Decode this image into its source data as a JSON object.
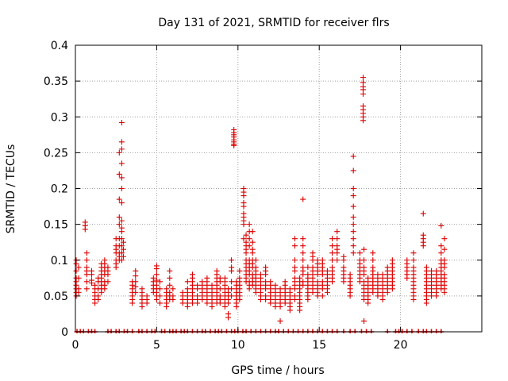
{
  "chart_data": {
    "type": "scatter",
    "title": "Day 131 of 2021, SRMTID for receiver flrs",
    "xlabel": "GPS time / hours",
    "ylabel": "SRMTID / TECUs",
    "xlim": [
      0,
      25.0
    ],
    "ylim": [
      0,
      0.4
    ],
    "grid": true,
    "marker": "+",
    "series_color": "#dd0000",
    "xticks": [
      0,
      5,
      10,
      15,
      20
    ],
    "xtick_labels": [
      "0",
      "5",
      "10",
      "15",
      "20"
    ],
    "yticks": [
      0,
      0.05,
      0.1,
      0.15,
      0.2,
      0.25,
      0.3,
      0.35,
      0.4
    ],
    "ytick_labels": [
      "0",
      "0.05",
      "0.1",
      "0.15",
      "0.2",
      "0.25",
      "0.3",
      "0.35",
      "0.4"
    ],
    "zero_values_x": [
      0.1,
      0.3,
      0.5,
      0.8,
      1.0,
      1.2,
      2.0,
      2.2,
      2.5,
      2.7,
      3.0,
      3.2,
      3.5,
      3.9,
      4.1,
      4.4,
      4.7,
      4.9,
      5.3,
      5.5,
      5.8,
      6.0,
      6.2,
      6.5,
      6.7,
      6.9,
      7.2,
      7.5,
      7.8,
      8.0,
      8.3,
      8.6,
      8.8,
      9.0,
      9.3,
      9.6,
      9.8,
      10.0,
      10.3,
      10.5,
      10.8,
      11.1,
      11.4,
      11.7,
      12.0,
      12.3,
      12.5,
      12.8,
      13.1,
      13.4,
      13.7,
      14.0,
      14.3,
      14.6,
      14.9,
      15.2,
      15.5,
      15.8,
      16.1,
      16.5,
      16.9,
      17.2,
      17.6,
      17.9,
      18.2,
      19.2,
      19.7,
      19.9,
      20.1,
      20.4,
      20.7,
      21.1,
      21.4,
      21.6,
      21.9,
      22.2,
      22.5
    ],
    "clusters": [
      {
        "x": 0.05,
        "y": [
          0.1,
          0.095,
          0.085,
          0.075,
          0.07,
          0.065,
          0.06,
          0.055,
          0.05
        ]
      },
      {
        "x": 0.2,
        "y": [
          0.09,
          0.075,
          0.06,
          0.055
        ]
      },
      {
        "x": 0.6,
        "y": [
          0.153,
          0.148,
          0.143
        ]
      },
      {
        "x": 0.7,
        "y": [
          0.11,
          0.1,
          0.09,
          0.085,
          0.08,
          0.07,
          0.06
        ]
      },
      {
        "x": 1.0,
        "y": [
          0.085,
          0.08,
          0.072,
          0.068
        ]
      },
      {
        "x": 1.2,
        "y": [
          0.065,
          0.06,
          0.055,
          0.05,
          0.045,
          0.04
        ]
      },
      {
        "x": 1.4,
        "y": [
          0.075,
          0.07,
          0.06,
          0.05,
          0.045
        ]
      },
      {
        "x": 1.6,
        "y": [
          0.095,
          0.09,
          0.085,
          0.08,
          0.075,
          0.07,
          0.065,
          0.06,
          0.055
        ]
      },
      {
        "x": 1.8,
        "y": [
          0.1,
          0.095,
          0.09,
          0.085,
          0.08,
          0.07,
          0.065,
          0.06
        ]
      },
      {
        "x": 2.0,
        "y": [
          0.09,
          0.085,
          0.08,
          0.07
        ]
      },
      {
        "x": 2.5,
        "y": [
          0.13,
          0.12,
          0.115,
          0.11,
          0.1,
          0.095,
          0.09
        ]
      },
      {
        "x": 2.7,
        "y": [
          0.25,
          0.22,
          0.185,
          0.16,
          0.15,
          0.13,
          0.12,
          0.11,
          0.105,
          0.1
        ]
      },
      {
        "x": 2.85,
        "y": [
          0.292,
          0.265,
          0.255,
          0.235,
          0.215,
          0.2,
          0.18,
          0.155,
          0.145,
          0.14,
          0.13,
          0.12,
          0.11,
          0.1
        ]
      },
      {
        "x": 2.95,
        "y": [
          0.125,
          0.115,
          0.105
        ]
      },
      {
        "x": 3.5,
        "y": [
          0.07,
          0.065,
          0.06,
          0.055,
          0.05,
          0.045,
          0.04
        ]
      },
      {
        "x": 3.7,
        "y": [
          0.085,
          0.078,
          0.07,
          0.063,
          0.055
        ]
      },
      {
        "x": 4.1,
        "y": [
          0.06,
          0.055,
          0.05,
          0.045,
          0.04,
          0.035
        ]
      },
      {
        "x": 4.4,
        "y": [
          0.05,
          0.045,
          0.04
        ]
      },
      {
        "x": 4.8,
        "y": [
          0.075,
          0.07,
          0.065,
          0.06,
          0.055
        ]
      },
      {
        "x": 5.0,
        "y": [
          0.092,
          0.088,
          0.08,
          0.072,
          0.065,
          0.06,
          0.055,
          0.05,
          0.045
        ]
      },
      {
        "x": 5.2,
        "y": [
          0.07,
          0.06,
          0.05,
          0.04
        ]
      },
      {
        "x": 5.6,
        "y": [
          0.06,
          0.055,
          0.05,
          0.045,
          0.04,
          0.035
        ]
      },
      {
        "x": 5.8,
        "y": [
          0.085,
          0.075,
          0.065,
          0.055,
          0.05,
          0.045
        ]
      },
      {
        "x": 6.0,
        "y": [
          0.06,
          0.05,
          0.045
        ]
      },
      {
        "x": 6.6,
        "y": [
          0.055,
          0.05,
          0.045,
          0.04
        ]
      },
      {
        "x": 6.9,
        "y": [
          0.07,
          0.06,
          0.055,
          0.05,
          0.045,
          0.04,
          0.035
        ]
      },
      {
        "x": 7.2,
        "y": [
          0.08,
          0.075,
          0.07,
          0.065,
          0.06,
          0.055,
          0.05,
          0.045,
          0.04
        ]
      },
      {
        "x": 7.5,
        "y": [
          0.065,
          0.06,
          0.05,
          0.045,
          0.04
        ]
      },
      {
        "x": 7.8,
        "y": [
          0.07,
          0.065,
          0.06,
          0.055,
          0.05,
          0.045
        ]
      },
      {
        "x": 8.1,
        "y": [
          0.075,
          0.07,
          0.065,
          0.06,
          0.055,
          0.05,
          0.045,
          0.04
        ]
      },
      {
        "x": 8.4,
        "y": [
          0.065,
          0.06,
          0.055,
          0.05,
          0.045,
          0.04,
          0.035
        ]
      },
      {
        "x": 8.7,
        "y": [
          0.085,
          0.08,
          0.075,
          0.07,
          0.065,
          0.06,
          0.055,
          0.05,
          0.045,
          0.04
        ]
      },
      {
        "x": 8.9,
        "y": [
          0.075,
          0.07,
          0.06,
          0.05,
          0.045,
          0.04
        ]
      },
      {
        "x": 9.2,
        "y": [
          0.075,
          0.07,
          0.065,
          0.06,
          0.055,
          0.05,
          0.045,
          0.04,
          0.035
        ]
      },
      {
        "x": 9.4,
        "y": [
          0.06,
          0.055,
          0.05,
          0.045,
          0.04,
          0.025,
          0.02
        ]
      },
      {
        "x": 9.75,
        "y": [
          0.282,
          0.278,
          0.275,
          0.272,
          0.268,
          0.265,
          0.262,
          0.26
        ]
      },
      {
        "x": 9.6,
        "y": [
          0.1,
          0.09,
          0.085,
          0.07,
          0.06,
          0.05
        ]
      },
      {
        "x": 9.9,
        "y": [
          0.07,
          0.065,
          0.06,
          0.055,
          0.05,
          0.045,
          0.04,
          0.035
        ]
      },
      {
        "x": 10.1,
        "y": [
          0.085,
          0.075,
          0.07,
          0.065,
          0.06,
          0.055,
          0.05,
          0.045
        ]
      },
      {
        "x": 10.35,
        "y": [
          0.2,
          0.195,
          0.19,
          0.18,
          0.175,
          0.165,
          0.16,
          0.155,
          0.15,
          0.13
        ]
      },
      {
        "x": 10.5,
        "y": [
          0.135,
          0.125,
          0.12,
          0.115,
          0.11,
          0.1,
          0.095,
          0.09,
          0.085,
          0.08,
          0.075,
          0.07
        ]
      },
      {
        "x": 10.7,
        "y": [
          0.15,
          0.14,
          0.13,
          0.12,
          0.1,
          0.095,
          0.09,
          0.085,
          0.08,
          0.07,
          0.065,
          0.06
        ]
      },
      {
        "x": 10.9,
        "y": [
          0.14,
          0.125,
          0.115,
          0.11,
          0.1,
          0.095,
          0.09,
          0.08,
          0.075,
          0.07,
          0.065
        ]
      },
      {
        "x": 11.1,
        "y": [
          0.1,
          0.09,
          0.085,
          0.08,
          0.075,
          0.07,
          0.065,
          0.06,
          0.055
        ]
      },
      {
        "x": 11.4,
        "y": [
          0.08,
          0.075,
          0.07,
          0.065,
          0.06,
          0.055,
          0.05,
          0.045
        ]
      },
      {
        "x": 11.7,
        "y": [
          0.09,
          0.085,
          0.08,
          0.07,
          0.065,
          0.06,
          0.05,
          0.045
        ]
      },
      {
        "x": 12.0,
        "y": [
          0.07,
          0.065,
          0.06,
          0.055,
          0.05,
          0.045,
          0.04
        ]
      },
      {
        "x": 12.3,
        "y": [
          0.065,
          0.06,
          0.055,
          0.05,
          0.045,
          0.04,
          0.035
        ]
      },
      {
        "x": 12.6,
        "y": [
          0.06,
          0.055,
          0.05,
          0.045,
          0.04,
          0.035,
          0.015
        ]
      },
      {
        "x": 12.9,
        "y": [
          0.07,
          0.065,
          0.06,
          0.055,
          0.05,
          0.045,
          0.04
        ]
      },
      {
        "x": 13.2,
        "y": [
          0.06,
          0.055,
          0.05,
          0.045,
          0.04,
          0.035,
          0.03
        ]
      },
      {
        "x": 13.5,
        "y": [
          0.13,
          0.12,
          0.1,
          0.09,
          0.085,
          0.075,
          0.07,
          0.065,
          0.06,
          0.05,
          0.045
        ]
      },
      {
        "x": 13.8,
        "y": [
          0.075,
          0.07,
          0.065,
          0.06,
          0.055,
          0.05,
          0.045,
          0.04,
          0.035,
          0.03
        ]
      },
      {
        "x": 14.0,
        "y": [
          0.185,
          0.13,
          0.12,
          0.11,
          0.1,
          0.09,
          0.085,
          0.08,
          0.07,
          0.065
        ]
      },
      {
        "x": 14.3,
        "y": [
          0.09,
          0.08,
          0.075,
          0.07,
          0.065,
          0.06,
          0.055,
          0.05,
          0.045
        ]
      },
      {
        "x": 14.6,
        "y": [
          0.11,
          0.105,
          0.1,
          0.09,
          0.085,
          0.08,
          0.075,
          0.07,
          0.065,
          0.06,
          0.055
        ]
      },
      {
        "x": 14.9,
        "y": [
          0.1,
          0.095,
          0.09,
          0.085,
          0.08,
          0.07,
          0.065,
          0.06,
          0.055,
          0.05
        ]
      },
      {
        "x": 15.2,
        "y": [
          0.1,
          0.095,
          0.09,
          0.085,
          0.08,
          0.07,
          0.065,
          0.06,
          0.05
        ]
      },
      {
        "x": 15.5,
        "y": [
          0.085,
          0.08,
          0.075,
          0.07,
          0.065,
          0.06,
          0.055
        ]
      },
      {
        "x": 15.8,
        "y": [
          0.13,
          0.12,
          0.11,
          0.1,
          0.09,
          0.085,
          0.08,
          0.075,
          0.07
        ]
      },
      {
        "x": 16.1,
        "y": [
          0.14,
          0.13,
          0.12,
          0.115,
          0.11,
          0.1
        ]
      },
      {
        "x": 16.5,
        "y": [
          0.105,
          0.1,
          0.09,
          0.085,
          0.08,
          0.075,
          0.07
        ]
      },
      {
        "x": 16.9,
        "y": [
          0.08,
          0.075,
          0.07,
          0.065,
          0.06,
          0.055,
          0.05
        ]
      },
      {
        "x": 17.1,
        "y": [
          0.245,
          0.225,
          0.2,
          0.19,
          0.175,
          0.16,
          0.15,
          0.14,
          0.13,
          0.12,
          0.11
        ]
      },
      {
        "x": 17.5,
        "y": [
          0.11,
          0.1,
          0.095,
          0.09,
          0.085,
          0.08,
          0.075,
          0.07
        ]
      },
      {
        "x": 17.7,
        "y": [
          0.355,
          0.348,
          0.342,
          0.338,
          0.332,
          0.315,
          0.31,
          0.305,
          0.3,
          0.295
        ]
      },
      {
        "x": 17.75,
        "y": [
          0.115,
          0.1,
          0.09,
          0.085,
          0.08,
          0.07,
          0.065,
          0.06,
          0.055,
          0.05,
          0.045,
          0.015
        ]
      },
      {
        "x": 18.0,
        "y": [
          0.075,
          0.07,
          0.065,
          0.06,
          0.055,
          0.05,
          0.045,
          0.04
        ]
      },
      {
        "x": 18.3,
        "y": [
          0.11,
          0.1,
          0.09,
          0.085,
          0.08,
          0.075,
          0.07,
          0.065,
          0.06,
          0.055
        ]
      },
      {
        "x": 18.6,
        "y": [
          0.08,
          0.075,
          0.07,
          0.065,
          0.06,
          0.055,
          0.05
        ]
      },
      {
        "x": 18.9,
        "y": [
          0.08,
          0.075,
          0.07,
          0.065,
          0.06,
          0.055,
          0.05,
          0.045
        ]
      },
      {
        "x": 19.2,
        "y": [
          0.09,
          0.085,
          0.08,
          0.075,
          0.07,
          0.065,
          0.06,
          0.055
        ]
      },
      {
        "x": 19.5,
        "y": [
          0.1,
          0.095,
          0.09,
          0.085,
          0.08,
          0.075,
          0.07,
          0.065,
          0.06
        ]
      },
      {
        "x": 20.4,
        "y": [
          0.1,
          0.095,
          0.09,
          0.085,
          0.08,
          0.075
        ]
      },
      {
        "x": 20.8,
        "y": [
          0.11,
          0.1,
          0.09,
          0.085,
          0.08,
          0.075,
          0.07,
          0.065,
          0.06,
          0.055,
          0.05,
          0.045
        ]
      },
      {
        "x": 21.4,
        "y": [
          0.165,
          0.135,
          0.13,
          0.125,
          0.12
        ]
      },
      {
        "x": 21.6,
        "y": [
          0.09,
          0.085,
          0.08,
          0.075,
          0.07,
          0.065,
          0.06,
          0.055,
          0.05,
          0.045,
          0.04
        ]
      },
      {
        "x": 21.9,
        "y": [
          0.085,
          0.08,
          0.075,
          0.07,
          0.065,
          0.06,
          0.055,
          0.05
        ]
      },
      {
        "x": 22.2,
        "y": [
          0.085,
          0.08,
          0.075,
          0.07,
          0.065,
          0.06,
          0.055,
          0.05
        ]
      },
      {
        "x": 22.5,
        "y": [
          0.148,
          0.12,
          0.11,
          0.1,
          0.095,
          0.09,
          0.085,
          0.08,
          0.075,
          0.07,
          0.065,
          0.06
        ]
      },
      {
        "x": 22.7,
        "y": [
          0.13,
          0.115,
          0.1,
          0.095,
          0.09,
          0.08,
          0.075,
          0.07,
          0.065,
          0.06,
          0.055
        ]
      }
    ]
  }
}
